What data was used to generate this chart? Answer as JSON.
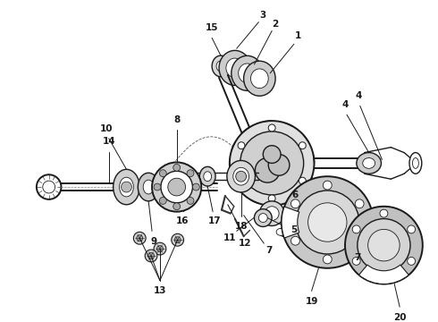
{
  "background_color": "#ffffff",
  "line_color": "#1a1a1a",
  "fig_width": 4.9,
  "fig_height": 3.6,
  "dpi": 100,
  "label_fontsize": 7.5,
  "lw_main": 1.0,
  "lw_thin": 0.6,
  "lw_thick": 1.4
}
